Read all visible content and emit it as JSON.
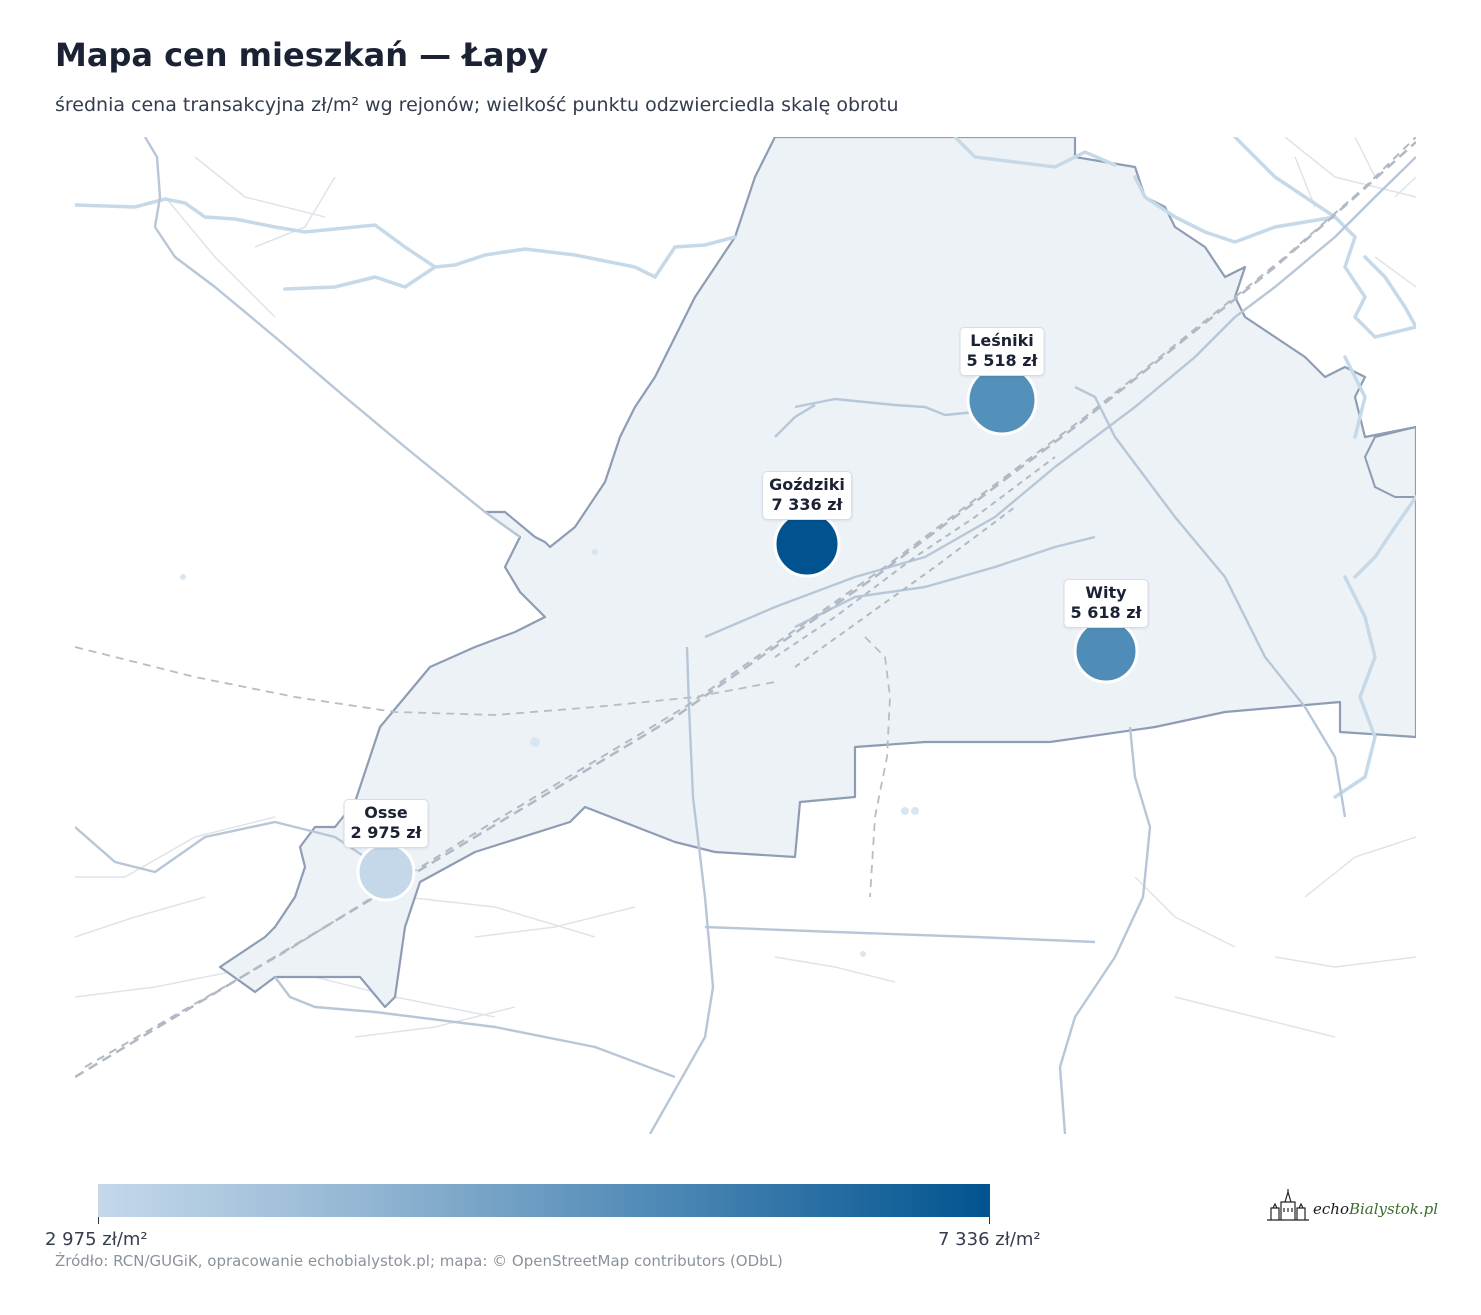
{
  "title": "Mapa cen mieszkań — Łapy",
  "subtitle": "średnia cena transakcyjna zł/m² wg rejonów; wielkość punktu odzwierciedla skalę obrotu",
  "districts": [
    {
      "name": "Leśniki",
      "price": "5 518 zł",
      "color": "#5390ba"
    },
    {
      "name": "Goździki",
      "price": "7 336 zł",
      "color": "#01538f"
    },
    {
      "name": "Wity",
      "price": "5 618 zł",
      "color": "#4f8cb8"
    },
    {
      "name": "Osse",
      "price": "2 975 zł",
      "color": "#c4d8ea"
    }
  ],
  "legend": {
    "min_label": "2 975 zł/m²",
    "max_label": "7 336 zł/m²",
    "min_color": "#c4d8ea",
    "max_color": "#01538f"
  },
  "source": "Źródło: RCN/GUGiK, opracowanie echobialystok.pl; mapa: © OpenStreetMap contributors (ODbL)",
  "logo": {
    "part1": "echo",
    "part2": "Bialystok.pl"
  }
}
